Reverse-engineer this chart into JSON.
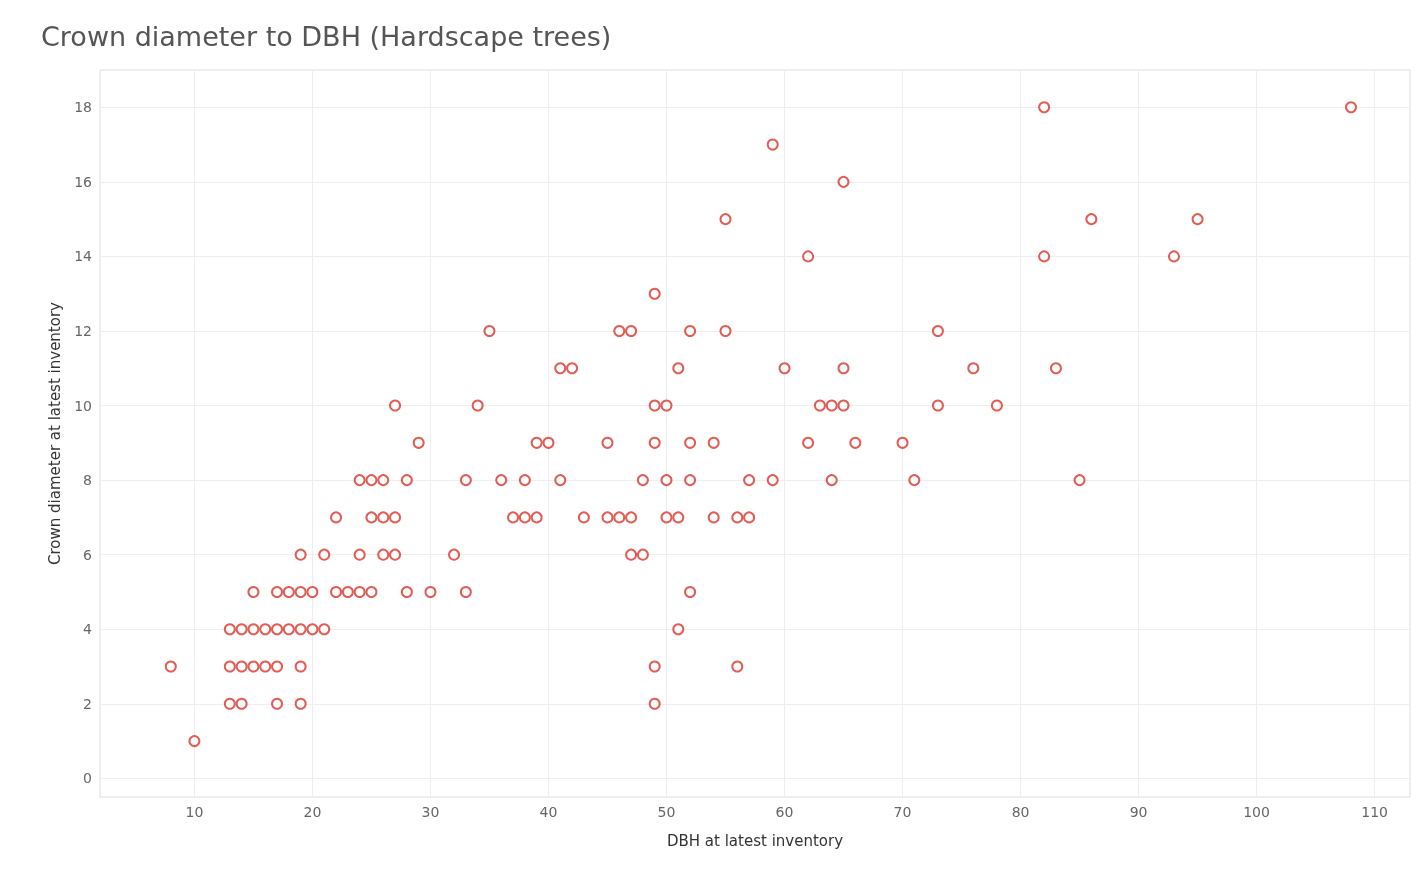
{
  "chart_data": {
    "type": "scatter",
    "title": "Crown diameter to DBH (Hardscape trees)",
    "xlabel": "DBH at latest inventory",
    "ylabel": "Crown diameter at latest inventory",
    "x": [
      82,
      108,
      59,
      65,
      55,
      86,
      95,
      62,
      82,
      93,
      49,
      35,
      46,
      47,
      52,
      55,
      73,
      41,
      42,
      51,
      60,
      65,
      76,
      83,
      27,
      34,
      49,
      50,
      63,
      64,
      65,
      73,
      78,
      29,
      39,
      40,
      45,
      49,
      52,
      54,
      62,
      66,
      70,
      24,
      25,
      26,
      28,
      33,
      36,
      38,
      41,
      48,
      50,
      52,
      57,
      59,
      64,
      71,
      85,
      22,
      25,
      26,
      27,
      37,
      38,
      39,
      43,
      45,
      46,
      47,
      50,
      51,
      54,
      56,
      57,
      19,
      21,
      24,
      26,
      27,
      32,
      47,
      48,
      15,
      17,
      18,
      19,
      20,
      22,
      23,
      24,
      25,
      28,
      30,
      33,
      52,
      13,
      14,
      15,
      16,
      17,
      18,
      19,
      20,
      21,
      51,
      8,
      13,
      14,
      15,
      16,
      17,
      19,
      49,
      56,
      13,
      14,
      17,
      19,
      49,
      10
    ],
    "values": [
      18,
      18,
      17,
      16,
      15,
      15,
      15,
      14,
      14,
      14,
      13,
      12,
      12,
      12,
      12,
      12,
      12,
      11,
      11,
      11,
      11,
      11,
      11,
      11,
      10,
      10,
      10,
      10,
      10,
      10,
      10,
      10,
      10,
      9,
      9,
      9,
      9,
      9,
      9,
      9,
      9,
      9,
      9,
      8,
      8,
      8,
      8,
      8,
      8,
      8,
      8,
      8,
      8,
      8,
      8,
      8,
      8,
      8,
      8,
      7,
      7,
      7,
      7,
      7,
      7,
      7,
      7,
      7,
      7,
      7,
      7,
      7,
      7,
      7,
      7,
      6,
      6,
      6,
      6,
      6,
      6,
      6,
      6,
      5,
      5,
      5,
      5,
      5,
      5,
      5,
      5,
      5,
      5,
      5,
      5,
      5,
      4,
      4,
      4,
      4,
      4,
      4,
      4,
      4,
      4,
      4,
      3,
      3,
      3,
      3,
      3,
      3,
      3,
      3,
      3,
      2,
      2,
      2,
      2,
      2,
      1
    ],
    "color": "#d9342b",
    "marker": "circle",
    "grid": true,
    "xlim": [
      2,
      113
    ],
    "xticks": [
      10,
      20,
      30,
      40,
      50,
      60,
      70,
      80,
      90,
      100,
      110
    ],
    "ylim": [
      -0.5,
      19
    ],
    "yticks": [
      0,
      2,
      4,
      6,
      8,
      10,
      12,
      14,
      16,
      18
    ]
  }
}
